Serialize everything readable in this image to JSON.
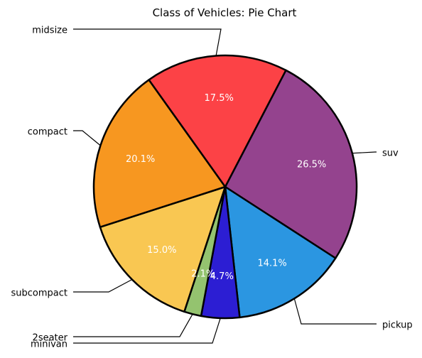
{
  "chart_data": {
    "type": "pie",
    "title": "Class of Vehicles: Pie Chart",
    "slices": [
      {
        "label": "suv",
        "value": 26.5,
        "pct_label": "26.5%",
        "color": "#94438E"
      },
      {
        "label": "pickup",
        "value": 14.1,
        "pct_label": "14.1%",
        "color": "#2B96E1"
      },
      {
        "label": "minivan",
        "value": 4.7,
        "pct_label": "4.7%",
        "color": "#2C1ED3"
      },
      {
        "label": "2seater",
        "value": 2.1,
        "pct_label": "2.1%",
        "color": "#94C36F"
      },
      {
        "label": "subcompact",
        "value": 15.0,
        "pct_label": "15.0%",
        "color": "#F9C752"
      },
      {
        "label": "compact",
        "value": 20.1,
        "pct_label": "20.1%",
        "color": "#F79720"
      },
      {
        "label": "midsize",
        "value": 17.5,
        "pct_label": "17.5%",
        "color": "#FC4246"
      }
    ],
    "start_angle_deg": 62.5,
    "direction": "clockwise",
    "edge_color": "#000000",
    "legend": "none"
  }
}
